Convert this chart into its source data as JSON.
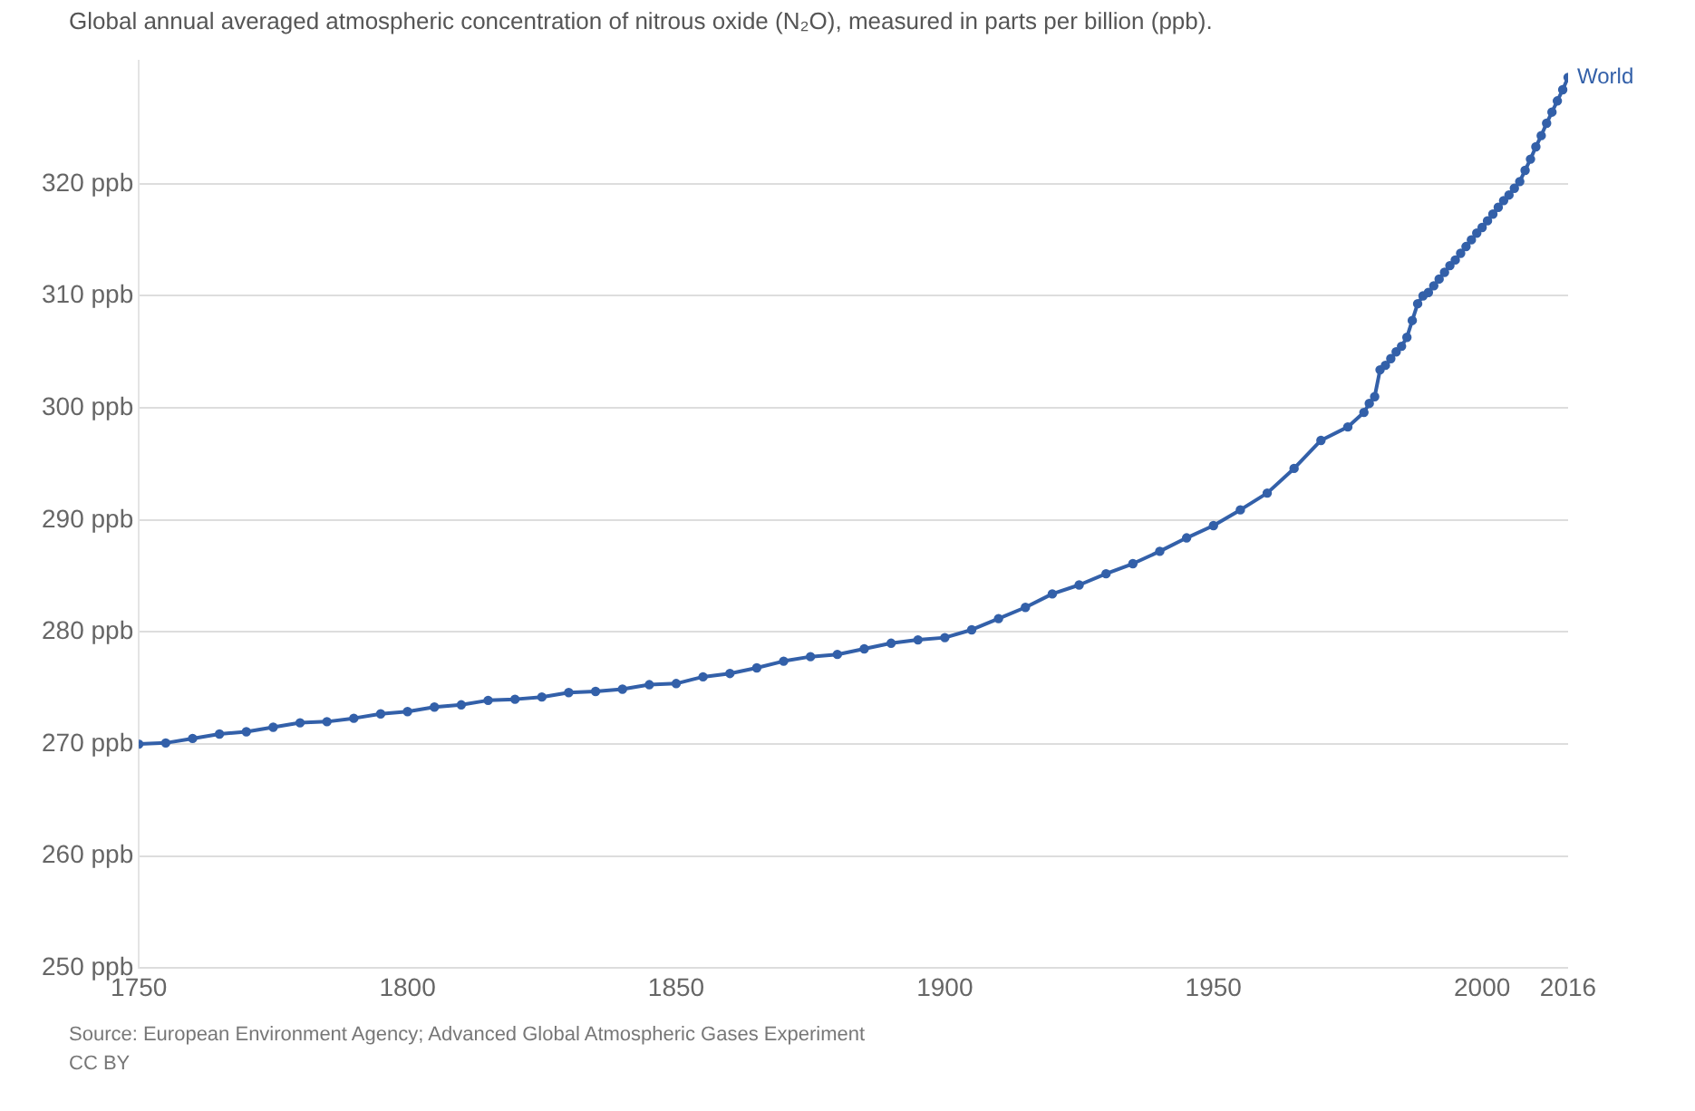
{
  "chart_data": {
    "type": "line",
    "title": "Global annual averaged atmospheric concentration of nitrous oxide (N₂O), measured in parts per billion (ppb).",
    "x": [
      1750,
      1755,
      1760,
      1765,
      1770,
      1775,
      1780,
      1785,
      1790,
      1795,
      1800,
      1805,
      1810,
      1815,
      1820,
      1825,
      1830,
      1835,
      1840,
      1845,
      1850,
      1855,
      1860,
      1865,
      1870,
      1875,
      1880,
      1885,
      1890,
      1895,
      1900,
      1905,
      1910,
      1915,
      1920,
      1925,
      1930,
      1935,
      1940,
      1945,
      1950,
      1955,
      1960,
      1965,
      1970,
      1975,
      1978,
      1979,
      1980,
      1981,
      1982,
      1983,
      1984,
      1985,
      1986,
      1987,
      1988,
      1989,
      1990,
      1991,
      1992,
      1993,
      1994,
      1995,
      1996,
      1997,
      1998,
      1999,
      2000,
      2001,
      2002,
      2003,
      2004,
      2005,
      2006,
      2007,
      2008,
      2009,
      2010,
      2011,
      2012,
      2013,
      2014,
      2015,
      2016
    ],
    "series": [
      {
        "name": "World",
        "color": "#3360a9",
        "values": [
          270.0,
          270.1,
          270.5,
          270.9,
          271.1,
          271.5,
          271.9,
          272.0,
          272.3,
          272.7,
          272.9,
          273.3,
          273.5,
          273.9,
          274.0,
          274.2,
          274.6,
          274.7,
          274.9,
          275.3,
          275.4,
          276.0,
          276.3,
          276.8,
          277.4,
          277.8,
          278.0,
          278.5,
          279.0,
          279.3,
          279.5,
          280.2,
          281.2,
          282.2,
          283.4,
          284.2,
          285.2,
          286.1,
          287.2,
          288.4,
          289.5,
          290.9,
          292.4,
          294.6,
          297.1,
          298.3,
          299.6,
          300.4,
          301.0,
          303.4,
          303.8,
          304.4,
          305.0,
          305.5,
          306.3,
          307.8,
          309.3,
          310.0,
          310.3,
          310.9,
          311.5,
          312.1,
          312.7,
          313.2,
          313.8,
          314.4,
          315.0,
          315.6,
          316.1,
          316.7,
          317.3,
          317.9,
          318.5,
          319.0,
          319.6,
          320.2,
          321.2,
          322.2,
          323.3,
          324.3,
          325.4,
          326.4,
          327.4,
          328.4,
          329.5
        ]
      }
    ],
    "xlim": [
      1750,
      2016
    ],
    "xticks": [
      1750,
      1800,
      1850,
      1900,
      1950,
      2000,
      2016
    ],
    "ylim": [
      250,
      331
    ],
    "yticks": [
      {
        "value": 250,
        "label": "250 ppb"
      },
      {
        "value": 260,
        "label": "260 ppb"
      },
      {
        "value": 270,
        "label": "270 ppb"
      },
      {
        "value": 280,
        "label": "280 ppb"
      },
      {
        "value": 290,
        "label": "290 ppb"
      },
      {
        "value": 300,
        "label": "300 ppb"
      },
      {
        "value": 310,
        "label": "310 ppb"
      },
      {
        "value": 320,
        "label": "320 ppb"
      }
    ],
    "grid": "y",
    "marker": "circle",
    "line_style": "solid",
    "legend": false,
    "annotations": [
      "Source: European Environment Agency; Advanced Global Atmospheric Gases Experiment",
      "CC BY"
    ]
  }
}
